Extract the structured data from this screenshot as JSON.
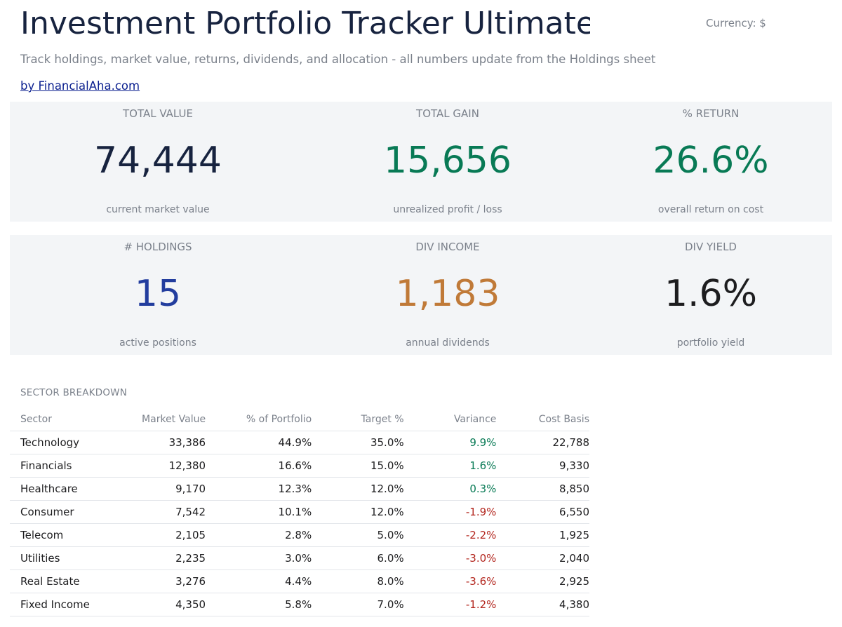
{
  "header": {
    "title": "Investment Portfolio Tracker Ultimate",
    "currency_label": "Currency: $",
    "subtitle": "Track holdings, market value, returns, dividends, and allocation - all numbers update from the Holdings sheet",
    "byline": "by FinancialAha.com"
  },
  "kpis": [
    {
      "label": "TOTAL VALUE",
      "value": "74,444",
      "sub": "current market value",
      "color": "#17233f"
    },
    {
      "label": "TOTAL GAIN",
      "value": "15,656",
      "sub": "unrealized profit / loss",
      "color": "#087a55"
    },
    {
      "label": "% RETURN",
      "value": "26.6%",
      "sub": "overall return on cost",
      "color": "#087a55"
    },
    {
      "label": "# HOLDINGS",
      "value": "15",
      "sub": "active positions",
      "color": "#223d9e"
    },
    {
      "label": "DIV INCOME",
      "value": "1,183",
      "sub": "annual dividends",
      "color": "#c07a38"
    },
    {
      "label": "DIV YIELD",
      "value": "1.6%",
      "sub": "portfolio yield",
      "color": "#1d1d1f"
    }
  ],
  "sector_breakdown": {
    "title": "SECTOR BREAKDOWN",
    "columns": [
      "Sector",
      "Market Value",
      "% of Portfolio",
      "Target %",
      "Variance",
      "Cost Basis"
    ],
    "rows": [
      {
        "sector": "Technology",
        "market_value": "33,386",
        "pct": "44.9%",
        "target": "35.0%",
        "variance": "9.9%",
        "cost_basis": "22,788",
        "sign": "pos"
      },
      {
        "sector": "Financials",
        "market_value": "12,380",
        "pct": "16.6%",
        "target": "15.0%",
        "variance": "1.6%",
        "cost_basis": "9,330",
        "sign": "pos"
      },
      {
        "sector": "Healthcare",
        "market_value": "9,170",
        "pct": "12.3%",
        "target": "12.0%",
        "variance": "0.3%",
        "cost_basis": "8,850",
        "sign": "pos"
      },
      {
        "sector": "Consumer",
        "market_value": "7,542",
        "pct": "10.1%",
        "target": "12.0%",
        "variance": "-1.9%",
        "cost_basis": "6,550",
        "sign": "neg"
      },
      {
        "sector": "Telecom",
        "market_value": "2,105",
        "pct": "2.8%",
        "target": "5.0%",
        "variance": "-2.2%",
        "cost_basis": "1,925",
        "sign": "neg"
      },
      {
        "sector": "Utilities",
        "market_value": "2,235",
        "pct": "3.0%",
        "target": "6.0%",
        "variance": "-3.0%",
        "cost_basis": "2,040",
        "sign": "neg"
      },
      {
        "sector": "Real Estate",
        "market_value": "3,276",
        "pct": "4.4%",
        "target": "8.0%",
        "variance": "-3.6%",
        "cost_basis": "2,925",
        "sign": "neg"
      },
      {
        "sector": "Fixed Income",
        "market_value": "4,350",
        "pct": "5.8%",
        "target": "7.0%",
        "variance": "-1.2%",
        "cost_basis": "4,380",
        "sign": "neg"
      }
    ]
  }
}
